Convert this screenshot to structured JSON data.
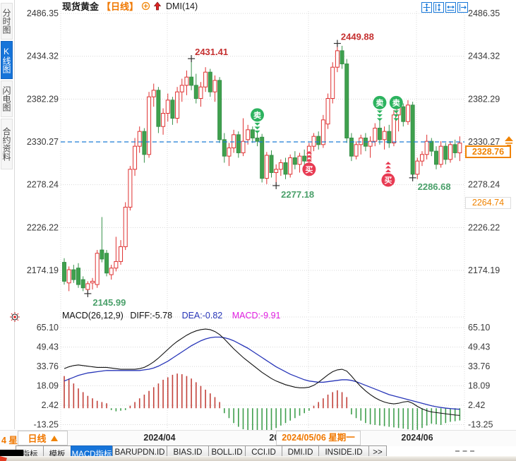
{
  "header": {
    "symbol": "现货黄金",
    "period_tag": "【日线】",
    "overlay": "DMI(14)"
  },
  "sidebar": {
    "items": [
      {
        "label": "分时图",
        "active": false
      },
      {
        "label": "K线图",
        "active": true
      },
      {
        "label": "闪电图",
        "active": false
      },
      {
        "label": "合约资料",
        "active": false
      }
    ]
  },
  "icons": {
    "toolbar": [
      "crosshair-pan",
      "fit-range-vertical",
      "fit-range-horizontal",
      "go-to-latest"
    ],
    "header": [
      "add-indicator",
      "trend-up-arrow"
    ],
    "macd": [
      "indicator-settings"
    ]
  },
  "colors": {
    "up_candle": "#df3131",
    "down_candle": "#3fa14d",
    "down_candle_stroke": "#37914a",
    "last_price_line": "#1c7cd5",
    "accent_orange": "#f08300",
    "buy_signal": "#e83a52",
    "sell_signal": "#2db35f",
    "dea_line": "#2735b8",
    "diff_line": "#111111",
    "macd_pos_bar": "#c2413a",
    "macd_neg_bar": "#3f9e4d",
    "high_label": "#c53030",
    "low_label": "#4aa06a",
    "active_tab": "#1674d9"
  },
  "bottom": {
    "left_fragment": "4 星",
    "period_button_label": "日线",
    "crosshair_date": "2024/05/06 星期一",
    "tabs": [
      {
        "label": "指标",
        "active": false
      },
      {
        "label": "模板",
        "active": false
      },
      {
        "label": "MACD指标",
        "active": true
      },
      {
        "label": "BARUPDN.ID",
        "active": false
      },
      {
        "label": "BIAS.ID",
        "active": false
      },
      {
        "label": "BOLL.ID",
        "active": false
      },
      {
        "label": "CCI.ID",
        "active": false
      },
      {
        "label": "DMI.ID",
        "active": false
      },
      {
        "label": "INSIDE.ID",
        "active": false
      },
      {
        "label": ">>",
        "active": false
      }
    ]
  },
  "chart_data": [
    {
      "type": "candlestick",
      "title": "现货黄金",
      "period": "日线",
      "overlay": "DMI(14)",
      "y_ticks": [
        2486.35,
        2434.32,
        2382.29,
        2330.27,
        2278.24,
        2226.22,
        2174.19
      ],
      "x_ticks": [
        "2024/04",
        "2024/05",
        "2024/06"
      ],
      "last_price_line": 2330.27,
      "last_price_label": "2328.76",
      "secondary_price_label": "2264.74",
      "extremes": [
        {
          "text": "2431.41",
          "index": 27,
          "price": 2431.41,
          "kind": "high"
        },
        {
          "text": "2449.88",
          "index": 58,
          "price": 2449.88,
          "kind": "high"
        },
        {
          "text": "2277.18",
          "index": 45,
          "price": 2277.18,
          "kind": "low"
        },
        {
          "text": "2145.99",
          "index": 5,
          "price": 2145.99,
          "kind": "low"
        },
        {
          "text": "2286.68",
          "index": 74,
          "price": 2286.68,
          "kind": "low"
        }
      ],
      "signals": [
        {
          "side": "sell",
          "label": "卖",
          "index": 41,
          "price": 2363
        },
        {
          "side": "sell",
          "label": "卖",
          "index": 67,
          "price": 2378
        },
        {
          "side": "sell",
          "label": "卖",
          "index": 70.5,
          "price": 2378
        },
        {
          "side": "buy",
          "label": "买",
          "index": 52,
          "price": 2297
        },
        {
          "side": "buy",
          "label": "买",
          "index": 68.8,
          "price": 2284
        }
      ],
      "candles": [
        [
          2184,
          2189,
          2157,
          2161
        ],
        [
          2159,
          2179,
          2149,
          2175
        ],
        [
          2175,
          2181,
          2159,
          2163
        ],
        [
          2177,
          2183,
          2153,
          2157
        ],
        [
          2163,
          2167,
          2149,
          2153
        ],
        [
          2151,
          2161,
          2145.99,
          2158
        ],
        [
          2159,
          2165,
          2151,
          2161
        ],
        [
          2157,
          2199,
          2153,
          2195
        ],
        [
          2199,
          2239,
          2184,
          2188
        ],
        [
          2195,
          2199,
          2167,
          2171
        ],
        [
          2169,
          2181,
          2163,
          2177
        ],
        [
          2177,
          2215,
          2173,
          2185
        ],
        [
          2185,
          2211,
          2181,
          2203
        ],
        [
          2203,
          2257,
          2199,
          2251
        ],
        [
          2251,
          2301,
          2247,
          2297
        ],
        [
          2297,
          2335,
          2289,
          2325
        ],
        [
          2325,
          2349,
          2317,
          2343
        ],
        [
          2343,
          2347,
          2305,
          2315
        ],
        [
          2315,
          2391,
          2311,
          2385
        ],
        [
          2385,
          2401,
          2373,
          2393
        ],
        [
          2393,
          2397,
          2341,
          2349
        ],
        [
          2349,
          2371,
          2339,
          2365
        ],
        [
          2365,
          2389,
          2355,
          2381
        ],
        [
          2381,
          2385,
          2351,
          2359
        ],
        [
          2359,
          2397,
          2353,
          2391
        ],
        [
          2391,
          2407,
          2379,
          2399
        ],
        [
          2399,
          2417,
          2387,
          2409
        ],
        [
          2409,
          2431.41,
          2393,
          2399
        ],
        [
          2399,
          2413,
          2377,
          2383
        ],
        [
          2383,
          2403,
          2373,
          2397
        ],
        [
          2397,
          2421,
          2391,
          2415
        ],
        [
          2415,
          2419,
          2385,
          2391
        ],
        [
          2391,
          2411,
          2379,
          2405
        ],
        [
          2405,
          2409,
          2329,
          2333
        ],
        [
          2333,
          2341,
          2305,
          2313
        ],
        [
          2313,
          2329,
          2301,
          2323
        ],
        [
          2323,
          2345,
          2317,
          2339
        ],
        [
          2339,
          2343,
          2311,
          2317
        ],
        [
          2317,
          2359,
          2313,
          2331
        ],
        [
          2333,
          2351,
          2327,
          2345
        ],
        [
          2345,
          2349,
          2329,
          2335
        ],
        [
          2335,
          2341,
          2325,
          2331
        ],
        [
          2336,
          2340,
          2281,
          2286
        ],
        [
          2286,
          2318,
          2279,
          2314
        ],
        [
          2314,
          2320,
          2287,
          2293
        ],
        [
          2293,
          2303,
          2277.18,
          2297
        ],
        [
          2297,
          2309,
          2289,
          2305
        ],
        [
          2305,
          2311,
          2285,
          2291
        ],
        [
          2291,
          2315,
          2287,
          2311
        ],
        [
          2311,
          2319,
          2297,
          2303
        ],
        [
          2303,
          2317,
          2293,
          2313
        ],
        [
          2313,
          2321,
          2299,
          2307
        ],
        [
          2307,
          2329,
          2301,
          2325
        ],
        [
          2325,
          2341,
          2319,
          2337
        ],
        [
          2337,
          2343,
          2321,
          2327
        ],
        [
          2327,
          2363,
          2323,
          2357
        ],
        [
          2352,
          2389,
          2346,
          2383
        ],
        [
          2383,
          2427,
          2377,
          2421
        ],
        [
          2421,
          2449.88,
          2415,
          2441
        ],
        [
          2441,
          2447,
          2419,
          2425
        ],
        [
          2425,
          2431,
          2329,
          2335
        ],
        [
          2335,
          2341,
          2307,
          2313
        ],
        [
          2313,
          2331,
          2309,
          2327
        ],
        [
          2327,
          2339,
          2315,
          2335
        ],
        [
          2335,
          2341,
          2319,
          2325
        ],
        [
          2325,
          2337,
          2311,
          2331
        ],
        [
          2331,
          2353,
          2325,
          2347
        ],
        [
          2347,
          2357,
          2327,
          2333
        ],
        [
          2333,
          2349,
          2321,
          2343
        ],
        [
          2343,
          2351,
          2323,
          2329
        ],
        [
          2329,
          2369,
          2325,
          2363
        ],
        [
          2363,
          2379,
          2343,
          2373
        ],
        [
          2373,
          2377,
          2349,
          2355
        ],
        [
          2355,
          2381,
          2351,
          2375
        ],
        [
          2375,
          2379,
          2286.68,
          2291
        ],
        [
          2291,
          2311,
          2285,
          2307
        ],
        [
          2307,
          2319,
          2301,
          2315
        ],
        [
          2315,
          2339,
          2309,
          2331
        ],
        [
          2331,
          2335,
          2313,
          2319
        ],
        [
          2319,
          2325,
          2297,
          2303
        ],
        [
          2303,
          2331,
          2299,
          2325
        ],
        [
          2325,
          2329,
          2303,
          2309
        ],
        [
          2309,
          2331,
          2305,
          2327
        ],
        [
          2327,
          2333,
          2311,
          2317
        ],
        [
          2317,
          2337,
          2307,
          2328.76
        ]
      ]
    },
    {
      "type": "macd",
      "title": "MACD(26,12,9)",
      "diff_label": "DIFF:-5.78",
      "dea_label": "DEA:-0.82",
      "macd_label": "MACD:-9.91",
      "y_ticks": [
        65.1,
        49.43,
        33.76,
        18.09,
        2.42,
        -13.25
      ],
      "histogram": [
        26,
        24,
        20,
        16,
        13,
        10,
        8,
        6,
        5,
        4,
        -1.5,
        -2.5,
        -2,
        -1.5,
        2,
        5,
        8,
        11,
        14,
        17,
        20,
        23,
        25,
        27,
        28,
        27.5,
        26,
        24,
        21,
        18,
        15,
        12,
        9,
        5,
        -4,
        -8,
        -12,
        -15,
        -17,
        -18,
        -19,
        -19.5,
        -20,
        -19,
        -18,
        -16,
        -14,
        -12,
        -10,
        -8,
        -6,
        -4,
        -2,
        2,
        5,
        8,
        11,
        13,
        14.5,
        13,
        9,
        -5,
        -8,
        -10,
        -12,
        -13,
        -13.5,
        -14,
        -14.5,
        -15,
        -15.5,
        -16,
        -16.5,
        -17,
        -18.5,
        -17.5,
        -16,
        -14,
        -12.5,
        -13,
        -13.5,
        -12,
        -11,
        -10.5,
        -9.91
      ],
      "diff": [
        32,
        33.5,
        34.5,
        35,
        34.5,
        34,
        33.5,
        33,
        33,
        33,
        32.5,
        32,
        31.5,
        31.5,
        31.5,
        31.5,
        32,
        33,
        35,
        37.5,
        40.5,
        44,
        47.5,
        51,
        54,
        56.5,
        59,
        61,
        62.5,
        63.5,
        64,
        63.5,
        62,
        59.5,
        56,
        52,
        48,
        44.5,
        41,
        38,
        35,
        32,
        29,
        26.5,
        24,
        22,
        20.5,
        19,
        18,
        17,
        16.5,
        16.5,
        17,
        18.5,
        21,
        24,
        27,
        29.5,
        31,
        31.5,
        30,
        26,
        21.5,
        17.5,
        14,
        11,
        8.5,
        6.5,
        5,
        4,
        3.5,
        4,
        5,
        5.5,
        4,
        1.5,
        -0.5,
        -2,
        -3,
        -3.5,
        -4,
        -4.5,
        -5,
        -5.5,
        -5.78
      ],
      "dea": [
        22,
        23.5,
        25,
        26.5,
        27.5,
        28.5,
        29,
        29.5,
        30,
        30.5,
        30.5,
        30.5,
        30.5,
        30.5,
        30.5,
        30.5,
        30.5,
        31,
        31.5,
        32.5,
        34,
        36,
        38,
        40.5,
        43,
        45.5,
        48,
        50.5,
        52.5,
        54.5,
        56,
        57,
        57.5,
        57.5,
        57,
        56,
        54.5,
        52.5,
        50.5,
        48.5,
        46,
        43.5,
        41,
        38.5,
        36,
        33.5,
        31.5,
        29.5,
        27.5,
        26,
        24.5,
        23,
        22,
        21.5,
        21,
        21,
        21.5,
        22,
        22.5,
        23,
        23,
        22.5,
        21.5,
        20,
        18.5,
        17,
        15.5,
        14,
        12.5,
        11,
        10,
        9,
        8,
        7,
        6,
        5,
        4,
        3,
        2,
        1.2,
        0.6,
        0.1,
        -0.3,
        -0.6,
        -0.82
      ]
    }
  ]
}
